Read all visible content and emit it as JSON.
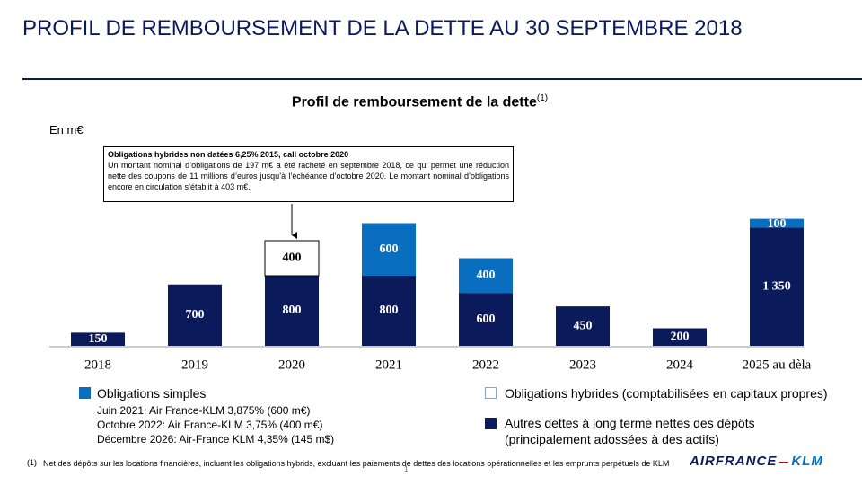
{
  "header": {
    "title": "PROFIL DE REMBOURSEMENT DE LA DETTE AU 30 SEPTEMBRE 2018"
  },
  "chart_data": {
    "type": "bar",
    "stacked": true,
    "title": "Profil de remboursement de la dette",
    "title_note": "(1)",
    "unit_label": "En m€",
    "annotation": {
      "title": "Obligations hybrides non datées 6,25% 2015, call octobre 2020",
      "text": "Un montant nominal d’obligations de 197 m€ a été racheté en septembre 2018, ce qui permet une réduction nette des coupons de 11 millions d’euros jusqu’à l’échéance d’octobre 2020. Le montant nominal d’obligations encore en circulation s’établit à 403 m€."
    },
    "categories": [
      "2018",
      "2019",
      "2020",
      "2021",
      "2022",
      "2023",
      "2024",
      "2025 au dèla"
    ],
    "series": [
      {
        "name": "Autres dettes à long terme nettes des dépôts\n(principalement adossées à des actifs)",
        "color": "#0b1a5a",
        "values": [
          150,
          700,
          800,
          800,
          600,
          450,
          200,
          1350
        ],
        "value_labels": [
          "150",
          "700",
          "800",
          "800",
          "600",
          "450",
          "200",
          "1 350"
        ]
      },
      {
        "name": "Obligations simples",
        "color": "#0a6ec0",
        "values": [
          null,
          null,
          null,
          600,
          400,
          null,
          null,
          100
        ],
        "details": [
          "Juin 2021: Air France-KLM 3,875% (600 m€)",
          "Octobre 2022: Air France-KLM 3,75% (400  m€)",
          "Décembre 2026: Air-France KLM 4,35% (145 m$)"
        ]
      },
      {
        "name": "Obligations hybrides (comptabilisées en capitaux propres)",
        "color": "#ffffff",
        "edgecolor": "#000000",
        "values": [
          null,
          null,
          400,
          null,
          null,
          null,
          null,
          null
        ]
      }
    ]
  },
  "footnote": {
    "marker": "(1)",
    "text": "Net des dépôts sur les locations financières, incluant les obligations hybrids, excluant les paiements de dettes des locations opérationnelles et les emprunts perpétuels de KLM"
  },
  "page_number": "1",
  "logo": {
    "left": "AIRFRANCE",
    "right": "KLM"
  }
}
